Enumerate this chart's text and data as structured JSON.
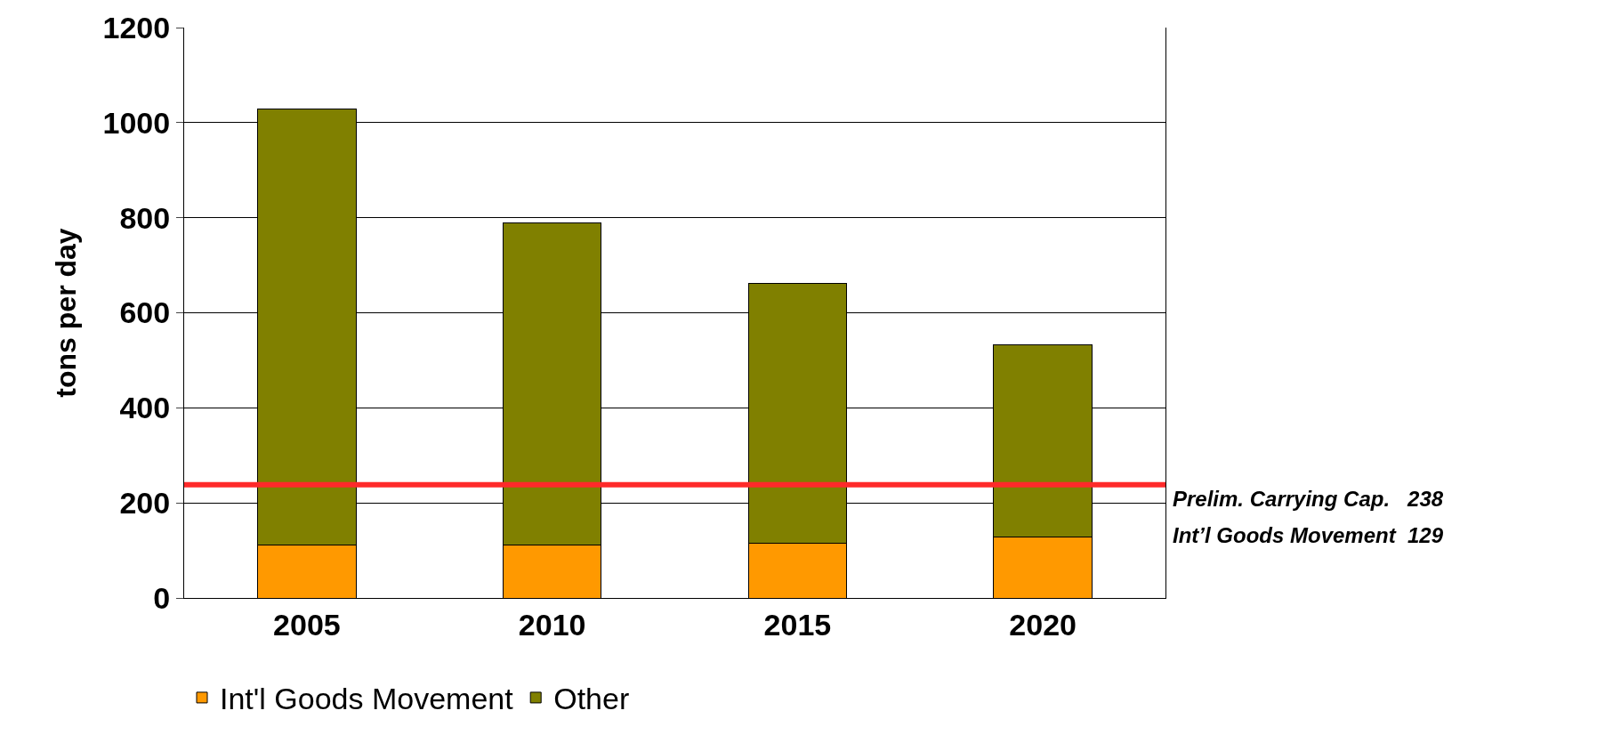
{
  "chart_data": {
    "type": "bar",
    "ylabel": "tons per day",
    "categories": [
      "2005",
      "2010",
      "2015",
      "2020"
    ],
    "stacked": true,
    "series": [
      {
        "name": "Int'l Goods Movement",
        "color": "#ff9900",
        "values": [
          111,
          111,
          115,
          129
        ]
      },
      {
        "name": "Other",
        "color": "#808000",
        "values": [
          917,
          678,
          547,
          403
        ]
      }
    ],
    "ylim": [
      0,
      1200
    ],
    "yticks": [
      0,
      200,
      400,
      600,
      800,
      1000,
      1200
    ],
    "grid": "y",
    "legend": "bottom",
    "ref_lines": [
      {
        "axis": "y",
        "value": 238,
        "label": "Prelim. Carrying Cap.   238",
        "color": "#ff2a2a"
      }
    ],
    "annotations": [
      "Int’l Goods Movement  129"
    ]
  }
}
